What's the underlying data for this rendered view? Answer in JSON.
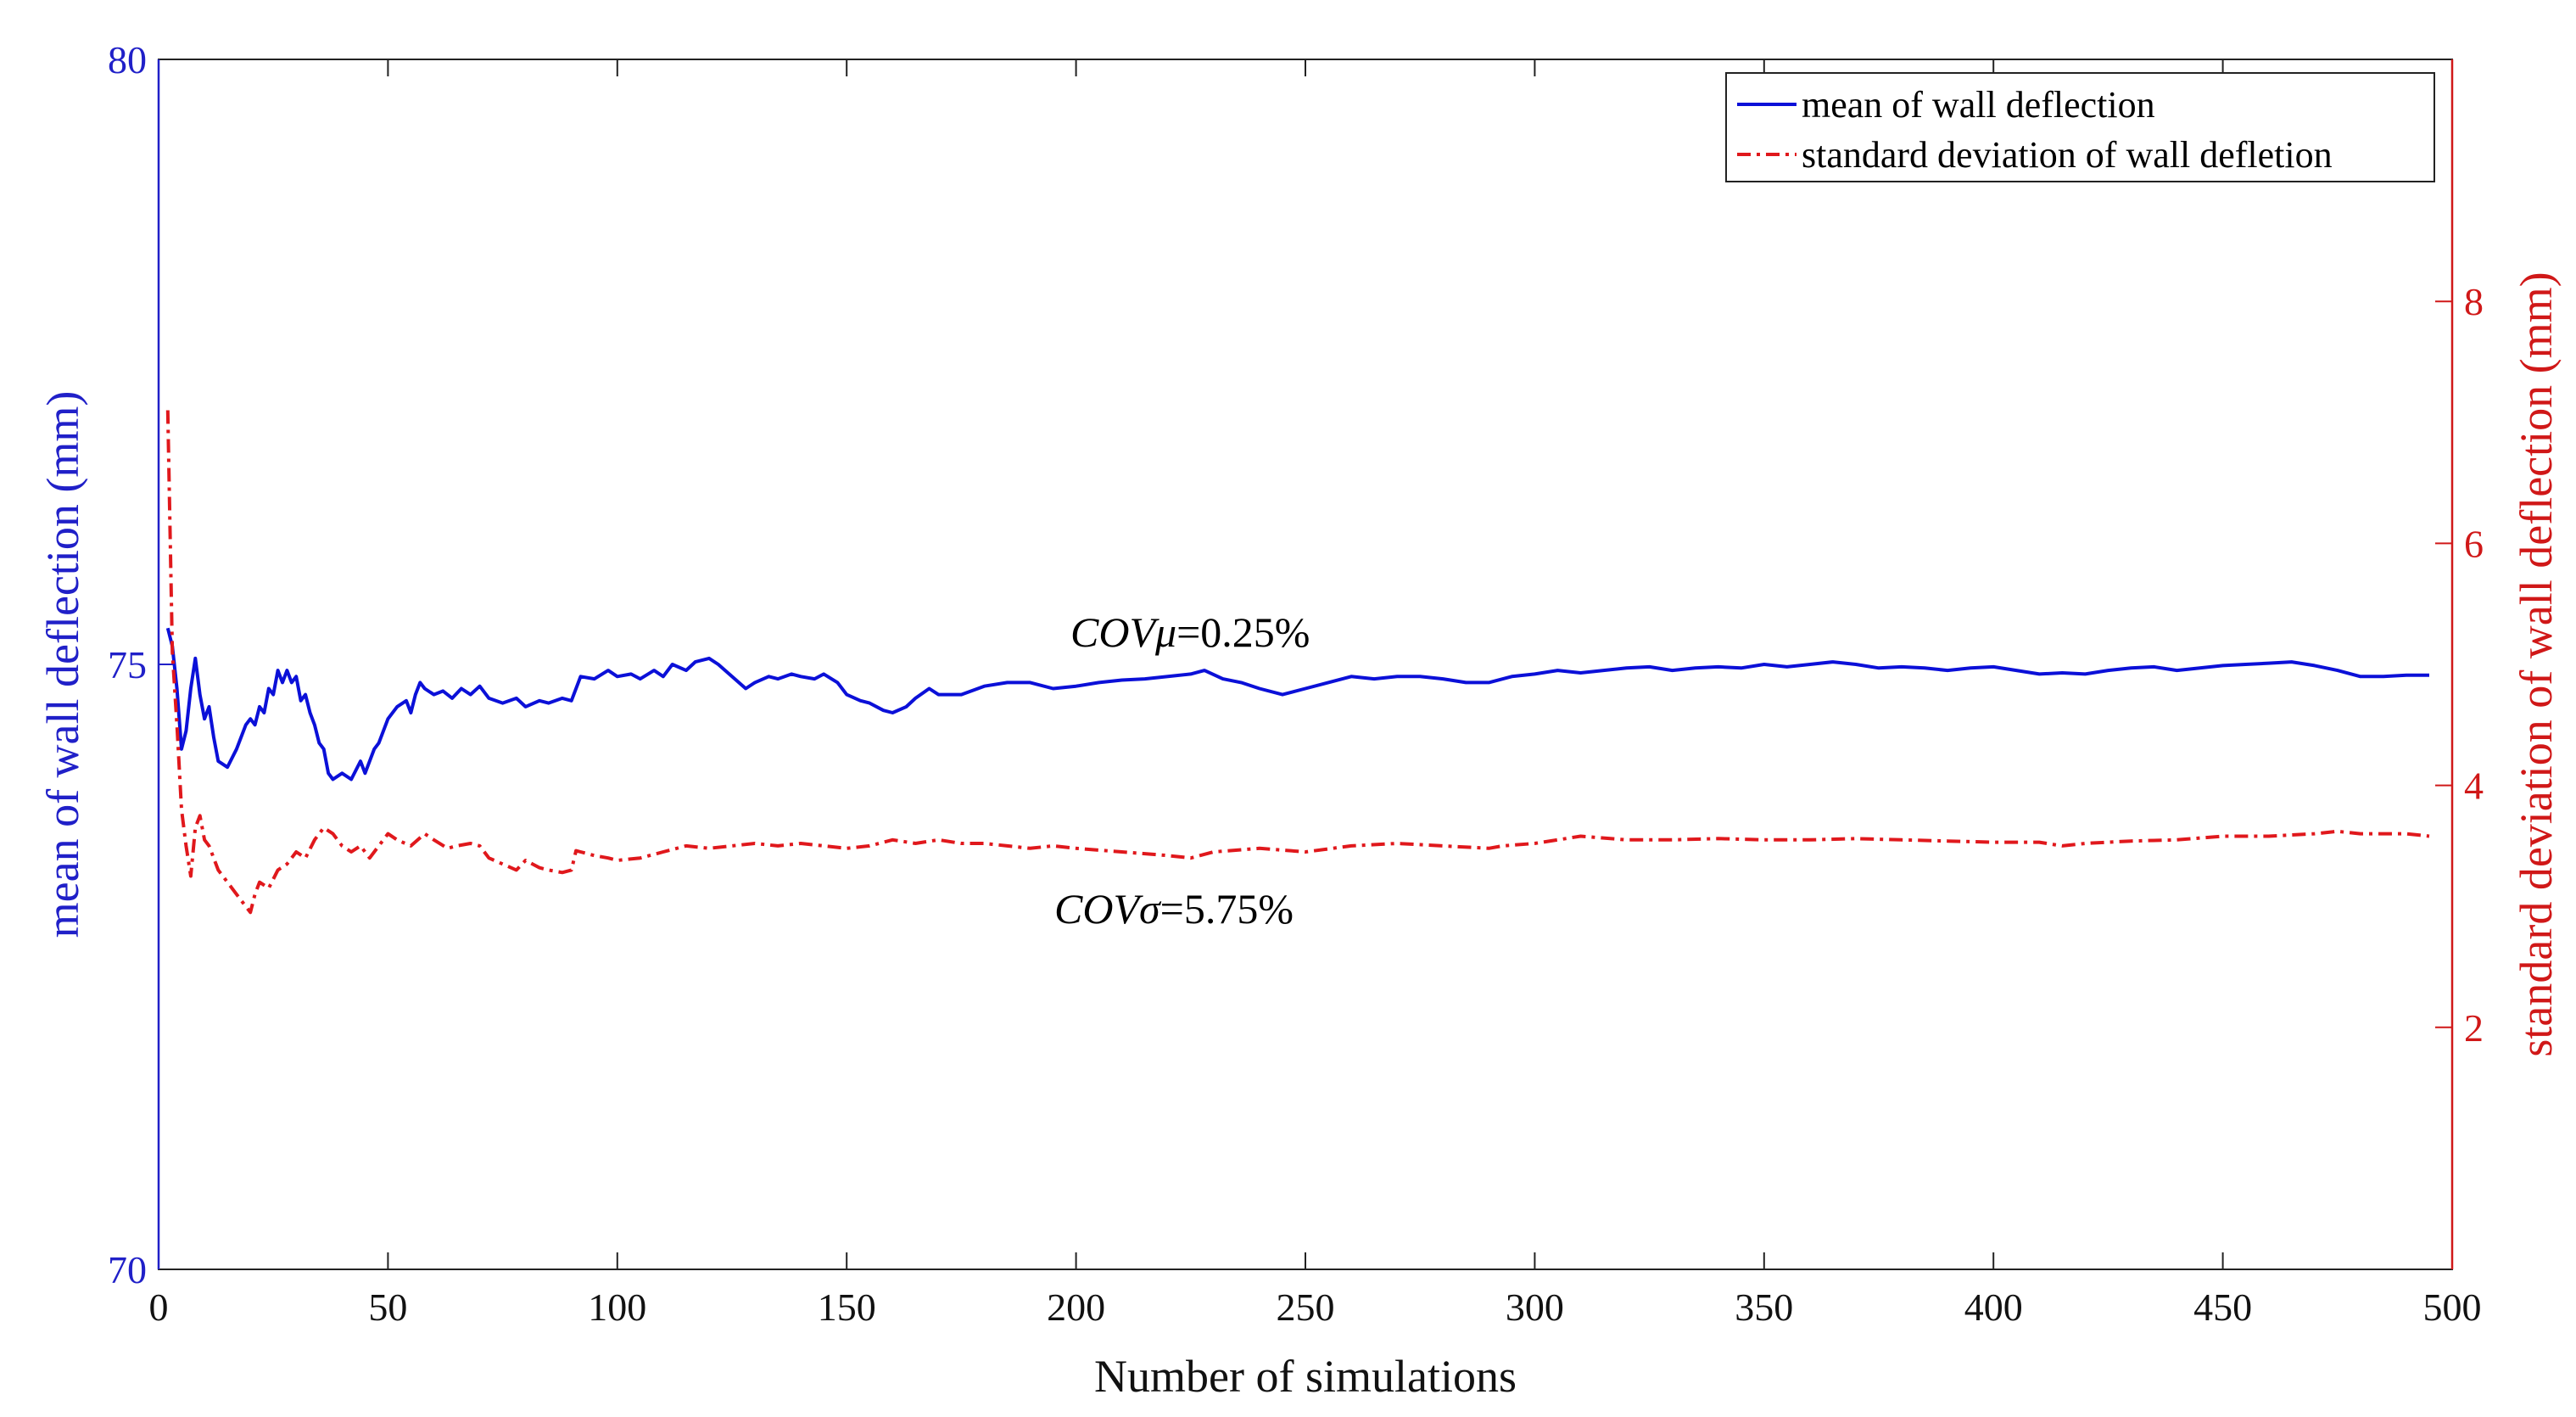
{
  "chart_data": {
    "type": "line",
    "title": "",
    "xlabel": "Number of simulations",
    "ylabel_left": "mean of wall deflection (mm)",
    "ylabel_right": "standard deviation of wall deflection (mm)",
    "xlim": [
      0,
      500
    ],
    "ylim_left": [
      70,
      80
    ],
    "ylim_right": [
      0,
      10
    ],
    "x_ticks": [
      0,
      50,
      100,
      150,
      200,
      250,
      300,
      350,
      400,
      450,
      500
    ],
    "y_left_ticks": [
      70,
      75,
      80
    ],
    "y_right_ticks": [
      2,
      4,
      6,
      8
    ],
    "colors": {
      "mean": "#0b10d8",
      "std": "#e0181c",
      "axis_left": "#2020c8",
      "axis_right": "#d01818",
      "frame": "#222222"
    },
    "legend": {
      "placement": "top-right",
      "entries": [
        "mean of wall deflection",
        "standard deviation of wall defletion"
      ]
    },
    "annotations": [
      {
        "prefix": "COV",
        "symbol": "μ",
        "value": "=0.25%"
      },
      {
        "prefix": "COV",
        "symbol": "σ",
        "value": "=5.75%"
      }
    ],
    "series": [
      {
        "name": "mean of wall deflection",
        "axis": "left",
        "style": "solid",
        "x": [
          2,
          3,
          4,
          5,
          6,
          7,
          8,
          9,
          10,
          11,
          12,
          13,
          15,
          17,
          19,
          20,
          21,
          22,
          23,
          24,
          25,
          26,
          27,
          28,
          29,
          30,
          31,
          32,
          33,
          34,
          35,
          36,
          37,
          38,
          40,
          42,
          44,
          45,
          47,
          48,
          50,
          52,
          54,
          55,
          56,
          57,
          58,
          60,
          62,
          64,
          66,
          68,
          70,
          72,
          75,
          78,
          80,
          83,
          85,
          88,
          90,
          92,
          95,
          98,
          100,
          103,
          105,
          108,
          110,
          112,
          115,
          117,
          120,
          122,
          125,
          128,
          130,
          133,
          135,
          138,
          140,
          143,
          145,
          148,
          150,
          153,
          155,
          158,
          160,
          163,
          165,
          168,
          170,
          175,
          180,
          185,
          190,
          195,
          200,
          205,
          210,
          215,
          220,
          225,
          228,
          232,
          236,
          240,
          245,
          250,
          255,
          260,
          265,
          270,
          275,
          280,
          285,
          290,
          295,
          300,
          305,
          310,
          315,
          320,
          325,
          330,
          335,
          340,
          345,
          350,
          355,
          360,
          365,
          370,
          375,
          380,
          385,
          390,
          395,
          400,
          405,
          410,
          415,
          420,
          425,
          430,
          435,
          440,
          445,
          450,
          455,
          460,
          465,
          470,
          475,
          480,
          485,
          490,
          495
        ],
        "values": [
          75.3,
          75.15,
          74.8,
          74.3,
          74.45,
          74.8,
          75.05,
          74.75,
          74.55,
          74.65,
          74.4,
          74.2,
          74.15,
          74.3,
          74.5,
          74.55,
          74.5,
          74.65,
          74.6,
          74.8,
          74.75,
          74.95,
          74.85,
          74.95,
          74.85,
          74.9,
          74.7,
          74.75,
          74.6,
          74.5,
          74.35,
          74.3,
          74.1,
          74.05,
          74.1,
          74.05,
          74.2,
          74.1,
          74.3,
          74.35,
          74.55,
          74.65,
          74.7,
          74.6,
          74.75,
          74.85,
          74.8,
          74.75,
          74.78,
          74.72,
          74.8,
          74.75,
          74.82,
          74.72,
          74.68,
          74.72,
          74.65,
          74.7,
          74.68,
          74.72,
          74.7,
          74.9,
          74.88,
          74.95,
          74.9,
          74.92,
          74.88,
          74.95,
          74.9,
          75.0,
          74.95,
          75.02,
          75.05,
          75.0,
          74.9,
          74.8,
          74.85,
          74.9,
          74.88,
          74.92,
          74.9,
          74.88,
          74.92,
          74.85,
          74.75,
          74.7,
          74.68,
          74.62,
          74.6,
          74.65,
          74.72,
          74.8,
          74.75,
          74.75,
          74.82,
          74.85,
          74.85,
          74.8,
          74.82,
          74.85,
          74.87,
          74.88,
          74.9,
          74.92,
          74.95,
          74.88,
          74.85,
          74.8,
          74.75,
          74.8,
          74.85,
          74.9,
          74.88,
          74.9,
          74.9,
          74.88,
          74.85,
          74.85,
          74.9,
          74.92,
          74.95,
          74.93,
          74.95,
          74.97,
          74.98,
          74.95,
          74.97,
          74.98,
          74.97,
          75.0,
          74.98,
          75.0,
          75.02,
          75.0,
          74.97,
          74.98,
          74.97,
          74.95,
          74.97,
          74.98,
          74.95,
          74.92,
          74.93,
          74.92,
          74.95,
          74.97,
          74.98,
          74.95,
          74.97,
          74.99,
          75.0,
          75.01,
          75.02,
          74.99,
          74.95,
          74.9,
          74.9,
          74.91,
          74.91
        ]
      },
      {
        "name": "standard deviation of wall defletion",
        "axis": "right",
        "style": "dashdot",
        "x": [
          2,
          3,
          4,
          5,
          6,
          7,
          8,
          9,
          10,
          11,
          12,
          13,
          14,
          16,
          18,
          20,
          21,
          22,
          24,
          26,
          28,
          30,
          32,
          34,
          36,
          38,
          40,
          42,
          44,
          46,
          48,
          50,
          52,
          55,
          58,
          60,
          63,
          65,
          68,
          70,
          72,
          75,
          78,
          80,
          83,
          85,
          88,
          90,
          91,
          92,
          95,
          98,
          100,
          105,
          110,
          115,
          120,
          125,
          130,
          135,
          140,
          145,
          150,
          155,
          160,
          165,
          170,
          175,
          180,
          185,
          190,
          195,
          200,
          210,
          220,
          225,
          230,
          240,
          250,
          260,
          270,
          280,
          290,
          293,
          300,
          305,
          310,
          320,
          330,
          340,
          350,
          360,
          370,
          380,
          390,
          400,
          410,
          415,
          420,
          430,
          440,
          450,
          460,
          470,
          475,
          480,
          490,
          495
        ],
        "values": [
          7.1,
          5.1,
          4.5,
          3.8,
          3.5,
          3.25,
          3.65,
          3.75,
          3.55,
          3.5,
          3.4,
          3.3,
          3.25,
          3.15,
          3.05,
          2.95,
          3.1,
          3.2,
          3.15,
          3.3,
          3.35,
          3.45,
          3.4,
          3.55,
          3.65,
          3.6,
          3.5,
          3.45,
          3.5,
          3.4,
          3.5,
          3.6,
          3.55,
          3.5,
          3.6,
          3.55,
          3.48,
          3.5,
          3.52,
          3.5,
          3.4,
          3.35,
          3.3,
          3.38,
          3.32,
          3.3,
          3.28,
          3.3,
          3.46,
          3.45,
          3.42,
          3.4,
          3.38,
          3.4,
          3.45,
          3.5,
          3.48,
          3.5,
          3.52,
          3.5,
          3.52,
          3.5,
          3.48,
          3.5,
          3.55,
          3.52,
          3.55,
          3.52,
          3.52,
          3.5,
          3.48,
          3.5,
          3.48,
          3.45,
          3.42,
          3.4,
          3.45,
          3.48,
          3.45,
          3.5,
          3.52,
          3.5,
          3.48,
          3.5,
          3.52,
          3.55,
          3.58,
          3.55,
          3.55,
          3.56,
          3.55,
          3.55,
          3.56,
          3.55,
          3.54,
          3.53,
          3.53,
          3.5,
          3.52,
          3.54,
          3.55,
          3.58,
          3.58,
          3.6,
          3.62,
          3.6,
          3.6,
          3.58
        ]
      }
    ]
  }
}
